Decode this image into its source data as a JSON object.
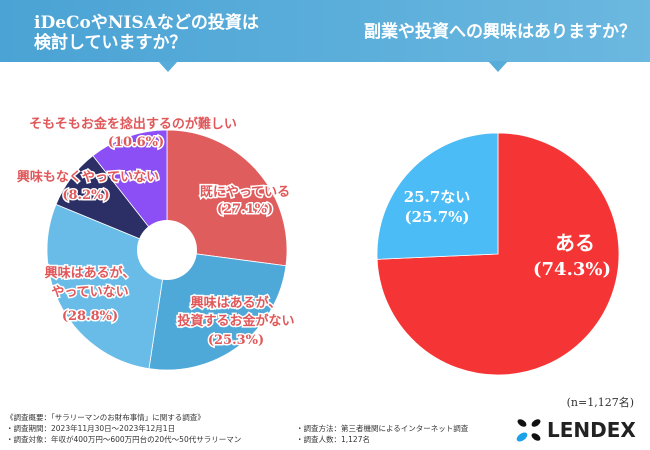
{
  "header": {
    "left_title_1": "iDeCoやNISAなどの投資は",
    "left_title_2": "検討していますか？",
    "right_title": "副業や投資への興味はありますか？"
  },
  "chart_data": [
    {
      "type": "pie",
      "title": "iDeCoやNISAなどの投資は検討していますか？",
      "donut": true,
      "slices": [
        {
          "label": "既にやっている",
          "value": 27.1,
          "text": "(27.1%)",
          "color": "#e05d5d"
        },
        {
          "label": "興味はあるが、投資するお金がない",
          "value": 25.3,
          "text": "(25.3%)",
          "color": "#4ea9d9"
        },
        {
          "label": "興味はあるが、やっていない",
          "value": 28.8,
          "text": "(28.8%)",
          "color": "#6abce8"
        },
        {
          "label": "興味もなくやっていない",
          "value": 8.2,
          "text": "(8.2%)",
          "color": "#2b2f66"
        },
        {
          "label": "そもそもお金を捻出するのが難しい",
          "value": 10.6,
          "text": "(10.6%)",
          "color": "#8c4ef5"
        }
      ]
    },
    {
      "type": "pie",
      "title": "副業や投資への興味はありますか？",
      "donut": false,
      "slices": [
        {
          "label": "ある",
          "value": 74.3,
          "text": "(74.3%)",
          "color": "#f53535"
        },
        {
          "label": "25.7ない",
          "value": 25.7,
          "text": "(25.7%)",
          "color": "#4bbcf5"
        }
      ]
    }
  ],
  "footer": {
    "n": "(n=1,127名)",
    "summary": "《調査概要：「サラリーマンのお財布事情」に関する調査》",
    "period": "・調査期間：2023年11月30日〜2023年12月1日",
    "target": "・調査対象：年収が400万円〜600万円台の20代〜50代サラリーマン",
    "method": "・調査方法：第三者機関によるインターネット調査",
    "count": "・調査人数：1,127名",
    "logo": "LENDEX"
  }
}
